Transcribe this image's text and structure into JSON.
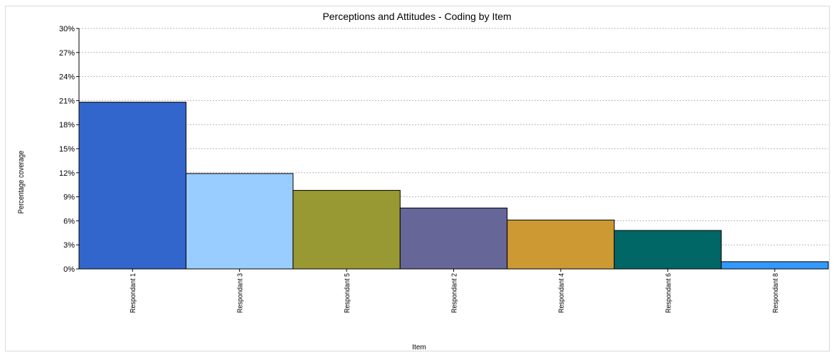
{
  "chart_data": {
    "type": "bar",
    "title": "Perceptions and Attitudes - Coding by Item",
    "xlabel": "Item",
    "ylabel": "Percentage coverage",
    "ylim": [
      0,
      30
    ],
    "y_ticks": [
      "0%",
      "3%",
      "6%",
      "9%",
      "12%",
      "15%",
      "18%",
      "21%",
      "24%",
      "27%",
      "30%"
    ],
    "categories": [
      "Respondant 1",
      "Respondant 3",
      "Respondant 5",
      "Respondant 2",
      "Respondant 4",
      "Respondant 6",
      "Respondant 8"
    ],
    "values": [
      20.8,
      11.9,
      9.8,
      7.6,
      6.1,
      4.8,
      0.9
    ],
    "colors": [
      "#3366cc",
      "#99ccff",
      "#999933",
      "#666699",
      "#cc9933",
      "#006666",
      "#3399ff"
    ],
    "grid": true,
    "legend": "none"
  }
}
